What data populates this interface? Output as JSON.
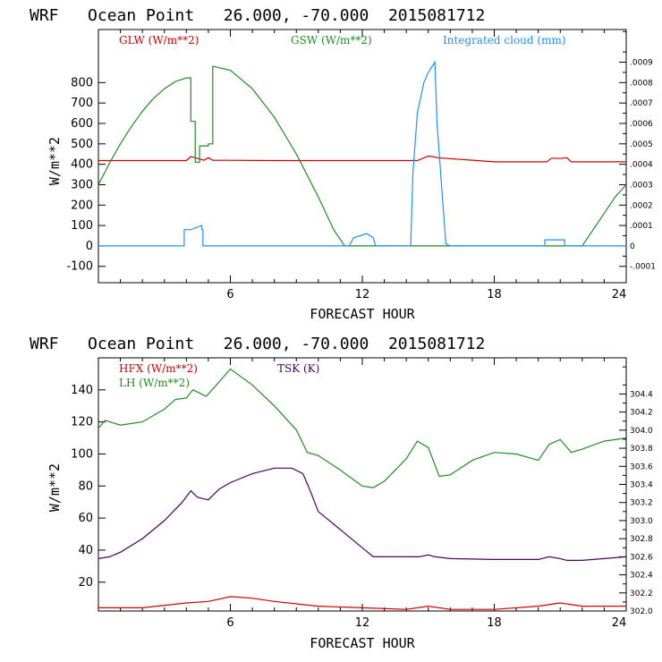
{
  "chart_data": [
    {
      "type": "line",
      "title": "WRF   Ocean Point   26.000, -70.000  2015081712",
      "xlabel": "FORECAST HOUR",
      "ylabel": "W/m**2",
      "xlim": [
        0,
        24
      ],
      "ylim": [
        -180,
        1060
      ],
      "x_ticks": [
        6,
        12,
        18,
        24
      ],
      "y_ticks": [
        -100,
        0,
        100,
        200,
        300,
        400,
        500,
        600,
        700,
        800
      ],
      "y_tick_labels": [
        "-100",
        "0",
        "100",
        "200",
        "300",
        "400",
        "500",
        "600",
        "700",
        "800"
      ],
      "y2_lim": [
        -0.00018,
        0.00106
      ],
      "y2_ticks": [
        -0.0001,
        0,
        0.0001,
        0.0002,
        0.0003,
        0.0004,
        0.0005,
        0.0006,
        0.0007,
        0.0008,
        0.0009
      ],
      "y2_tick_labels": [
        "-.0001",
        "0",
        ".0001",
        ".0002",
        ".0003",
        ".0004",
        ".0005",
        ".0006",
        ".0007",
        ".0008",
        ".0009"
      ],
      "series": [
        {
          "name": "GLW (W/m**2)",
          "axis": "left",
          "color": "#cc0000",
          "x": [
            0,
            3,
            4.0,
            4.2,
            4.4,
            4.8,
            5.0,
            5.2,
            8,
            12,
            14.5,
            15,
            15.2,
            15.4,
            17,
            18,
            20.4,
            20.6,
            21.0,
            21.3,
            21.5,
            24
          ],
          "y": [
            418,
            418,
            418,
            438,
            432,
            420,
            432,
            420,
            418,
            418,
            418,
            440,
            438,
            432,
            420,
            412,
            412,
            430,
            428,
            432,
            412,
            412
          ]
        },
        {
          "name": "GSW (W/m**2)",
          "axis": "left",
          "color": "#228b22",
          "x": [
            0,
            0.5,
            1,
            1.5,
            2,
            2.5,
            3,
            3.5,
            4.0,
            4.0,
            4.2,
            4.2,
            4.4,
            4.4,
            4.6,
            4.6,
            5.0,
            5.0,
            5.2,
            5.2,
            6,
            7,
            8,
            9,
            10,
            10.7,
            11.2,
            11.4,
            21.8,
            22.0,
            22.5,
            23,
            23.5,
            24
          ],
          "y": [
            300,
            405,
            500,
            585,
            660,
            722,
            770,
            805,
            823,
            823,
            823,
            610,
            610,
            410,
            410,
            490,
            490,
            500,
            500,
            880,
            860,
            770,
            630,
            450,
            240,
            80,
            0,
            0,
            0,
            0,
            80,
            160,
            240,
            300
          ]
        },
        {
          "name": "Integrated cloud (mm)",
          "axis": "right",
          "color": "#1e90ff",
          "x": [
            0,
            3.9,
            3.9,
            4.2,
            4.7,
            4.7,
            4.75,
            4.75,
            11.4,
            11.6,
            11.9,
            12.2,
            12.5,
            12.6,
            14.2,
            14.3,
            14.5,
            14.8,
            15.0,
            15.3,
            15.4,
            15.6,
            15.8,
            16,
            20.3,
            20.3,
            21.2,
            21.2,
            24
          ],
          "y": [
            0,
            0,
            8e-05,
            8e-05,
            0.0001,
            8e-05,
            8e-05,
            0,
            0,
            4e-05,
            5e-05,
            6e-05,
            4e-05,
            0,
            0,
            0.00035,
            0.00065,
            0.0008,
            0.00085,
            0.0009,
            0.0006,
            0.0003,
            1e-05,
            0,
            0,
            3e-05,
            3e-05,
            0,
            0
          ]
        }
      ]
    },
    {
      "type": "line",
      "title": "WRF   Ocean Point   26.000, -70.000  2015081712",
      "xlabel": "FORECAST HOUR",
      "ylabel": "W/m**2",
      "xlim": [
        0,
        24
      ],
      "ylim": [
        2,
        160
      ],
      "x_ticks": [
        6,
        12,
        18,
        24
      ],
      "y_ticks": [
        20,
        40,
        60,
        80,
        100,
        120,
        140
      ],
      "y_tick_labels": [
        "20",
        "40",
        "60",
        "80",
        "100",
        "120",
        "140"
      ],
      "y2_lim": [
        302.0,
        304.8
      ],
      "y2_ticks": [
        302.0,
        302.2,
        302.4,
        302.6,
        302.8,
        303.0,
        303.2,
        303.4,
        303.6,
        303.8,
        304.0,
        304.2,
        304.4
      ],
      "y2_tick_labels": [
        "302.0",
        "302.2",
        "302.4",
        "302.6",
        "302.8",
        "303.0",
        "303.2",
        "303.4",
        "303.6",
        "303.8",
        "304.0",
        "304.2",
        "304.4"
      ],
      "series": [
        {
          "name": "HFX (W/m**2)",
          "axis": "left",
          "color": "#cc0000",
          "x": [
            0,
            2,
            4,
            5,
            6,
            7,
            8,
            10,
            12,
            14,
            15,
            16,
            18,
            20,
            21,
            22,
            24
          ],
          "y": [
            4,
            4,
            7,
            8,
            11,
            10,
            8,
            5,
            4,
            3,
            5,
            3,
            3,
            5,
            7,
            5,
            5
          ]
        },
        {
          "name": "LH (W/m**2)",
          "axis": "left",
          "color": "#228b22",
          "x": [
            0,
            0.3,
            1,
            2,
            3,
            3.5,
            4.0,
            4.3,
            4.6,
            4.9,
            5.3,
            6,
            7,
            8,
            9,
            9.5,
            10,
            11,
            12,
            12.5,
            13,
            14,
            14.5,
            15,
            15.5,
            16,
            17,
            18,
            19,
            20,
            20.5,
            21,
            21.5,
            22,
            23,
            24
          ],
          "y": [
            116,
            121,
            118,
            120,
            128,
            134,
            135,
            140,
            138,
            136,
            142,
            153,
            143,
            130,
            115,
            101,
            99,
            90,
            80,
            79,
            83,
            97,
            108,
            104,
            86,
            87,
            96,
            101,
            100,
            96,
            106,
            109,
            101,
            103,
            108,
            110
          ]
        },
        {
          "name": "TSK (K)",
          "axis": "right",
          "color": "#4b0060",
          "x": [
            0,
            0.5,
            1,
            2,
            3,
            3.8,
            4.2,
            4.5,
            4.8,
            5.0,
            5.5,
            6,
            7,
            8,
            8.8,
            9.3,
            9.6,
            10,
            11,
            12,
            12.5,
            13,
            14,
            14.3,
            14.6,
            15,
            15.3,
            16,
            18,
            20,
            20.5,
            21,
            21.3,
            22,
            23,
            24
          ],
          "y": [
            302.58,
            302.6,
            302.65,
            302.8,
            303.0,
            303.2,
            303.33,
            303.26,
            303.24,
            303.23,
            303.35,
            303.42,
            303.52,
            303.58,
            303.58,
            303.52,
            303.35,
            303.1,
            302.9,
            302.7,
            302.6,
            302.6,
            302.6,
            302.6,
            302.6,
            302.62,
            302.6,
            302.58,
            302.57,
            302.57,
            302.6,
            302.58,
            302.56,
            302.56,
            302.58,
            302.6
          ]
        }
      ]
    }
  ]
}
